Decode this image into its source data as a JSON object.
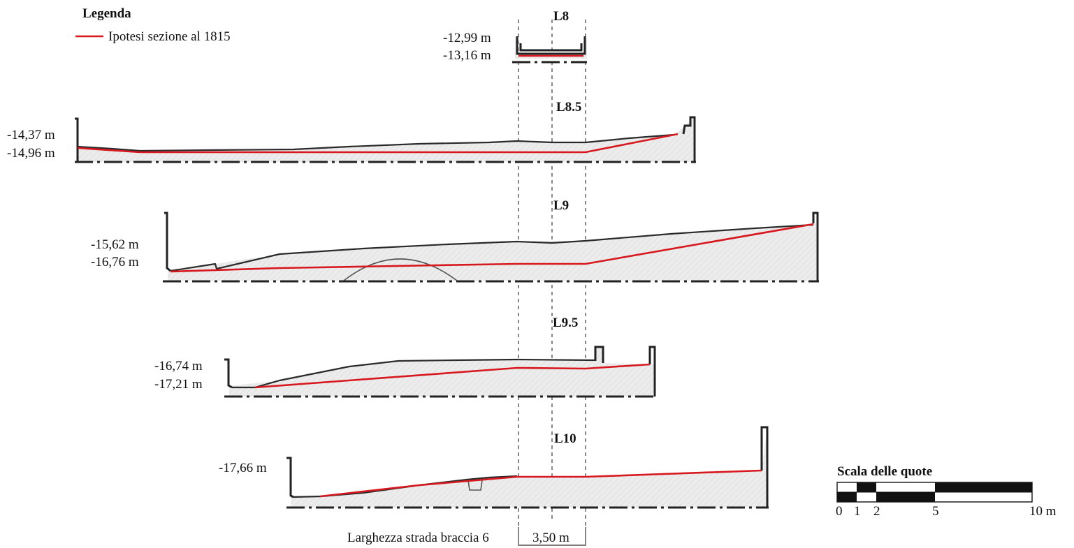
{
  "legend": {
    "title": "Legenda",
    "item_label": "Ipotesi sezione al 1815",
    "item_color": "#d7191f"
  },
  "sections": [
    {
      "id": "L8",
      "label": "L8",
      "elevations": [
        "-12,99 m",
        "-13,16 m"
      ]
    },
    {
      "id": "L8.5",
      "label": "L8.5",
      "elevations": [
        "-14,37 m",
        "-14,96 m"
      ]
    },
    {
      "id": "L9",
      "label": "L9",
      "elevations": [
        "-15,62 m",
        "-16,76 m"
      ]
    },
    {
      "id": "L9.5",
      "label": "L9.5",
      "elevations": [
        "-16,74 m",
        "-17,21 m"
      ]
    },
    {
      "id": "L10",
      "label": "L10",
      "elevations": [
        "-17,66 m"
      ]
    }
  ],
  "road_width": {
    "caption": "Larghezza strada braccia 6",
    "value": "3,50 m"
  },
  "scale_bar": {
    "title": "Scala delle quote",
    "ticks": [
      "0",
      "1",
      "2",
      "5",
      "10 m"
    ]
  }
}
